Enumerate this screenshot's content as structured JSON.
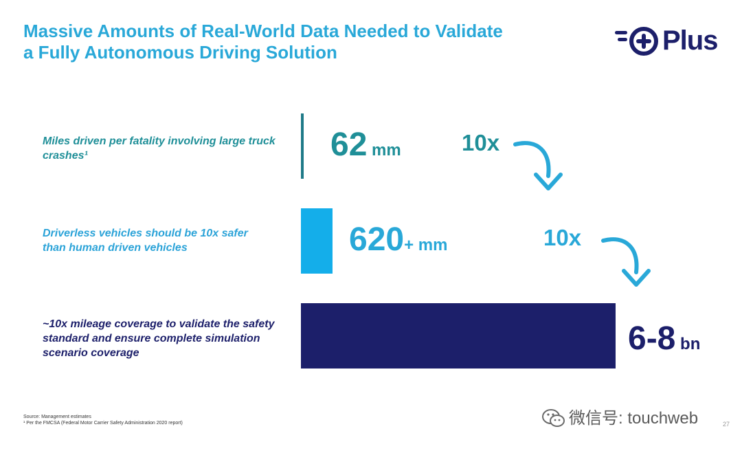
{
  "title": "Massive Amounts of Real-World Data Needed to Validate\na Fully Autonomous Driving Solution",
  "logo": {
    "text": "Plus",
    "color": "#1c1f6a",
    "icon": "plus-logo-icon"
  },
  "colors": {
    "teal": "#1f8f98",
    "sky": "#29a8d8",
    "bright_blue": "#14aeea",
    "navy": "#1c1f6a"
  },
  "chart_data": {
    "type": "bar",
    "orientation": "horizontal",
    "categories": [
      "Miles driven per fatality involving large truck crashes¹",
      "Driverless vehicles should be 10x safer than human driven vehicles",
      "~10x mileage coverage to validate the safety standard and ensure complete simulation scenario coverage"
    ],
    "values": [
      62,
      620,
      7000
    ],
    "unit": "million miles",
    "data_labels": [
      {
        "number": "62",
        "unit": " mm"
      },
      {
        "number": "620",
        "unit": "+ mm"
      },
      {
        "number": "6-8",
        "unit": " bn"
      }
    ],
    "multipliers": [
      "10x",
      "10x"
    ],
    "grid": false,
    "legend": "none"
  },
  "footnotes": [
    "Source: Management estimates",
    "¹ Per the FMCSA (Federal Motor Carrier Safety Administration 2020 report)"
  ],
  "watermark": {
    "text": "微信号: touchweb",
    "icon": "wechat-icon"
  },
  "page_number": "27"
}
